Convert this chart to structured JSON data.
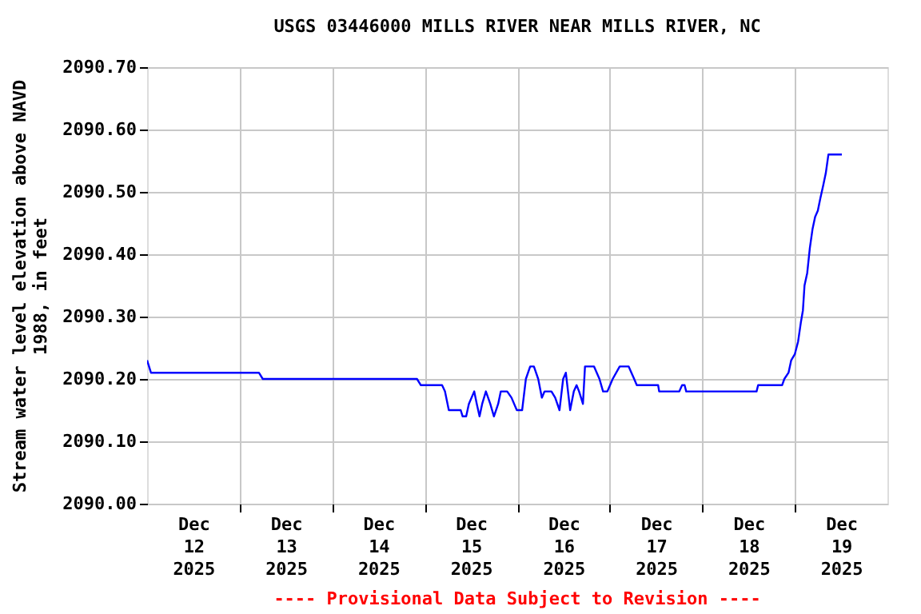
{
  "chart_data": {
    "type": "line",
    "title": "USGS 03446000 MILLS RIVER NEAR MILLS RIVER, NC",
    "ylabel": "Stream water level elevation above NAVD\n1988, in feet",
    "x": [
      "2025-12-12T00:00",
      "2025-12-12T01:00",
      "2025-12-13T05:00",
      "2025-12-13T06:00",
      "2025-12-14T22:00",
      "2025-12-14T23:00",
      "2025-12-15T04:30",
      "2025-12-15T05:15",
      "2025-12-15T06:15",
      "2025-12-15T09:20",
      "2025-12-15T09:50",
      "2025-12-15T10:45",
      "2025-12-15T11:27",
      "2025-12-15T12:50",
      "2025-12-15T13:30",
      "2025-12-15T14:13",
      "2025-12-15T14:54",
      "2025-12-15T15:52",
      "2025-12-15T17:00",
      "2025-12-15T17:57",
      "2025-12-15T19:03",
      "2025-12-15T19:44",
      "2025-12-15T21:23",
      "2025-12-15T22:30",
      "2025-12-15T23:53",
      "2025-12-16T01:16",
      "2025-12-16T02:14",
      "2025-12-16T03:21",
      "2025-12-16T04:19",
      "2025-12-16T05:26",
      "2025-12-16T06:23",
      "2025-12-16T07:05",
      "2025-12-16T08:52",
      "2025-12-16T09:50",
      "2025-12-16T10:57",
      "2025-12-16T11:54",
      "2025-12-16T12:36",
      "2025-12-16T13:43",
      "2025-12-16T14:40",
      "2025-12-16T15:23",
      "2025-12-16T16:02",
      "2025-12-16T17:02",
      "2025-12-16T17:34",
      "2025-12-16T19:55",
      "2025-12-16T21:19",
      "2025-12-16T22:15",
      "2025-12-16T23:22",
      "2025-12-17T00:45",
      "2025-12-17T02:34",
      "2025-12-17T04:54",
      "2025-12-17T06:19",
      "2025-12-17T07:00",
      "2025-12-17T12:32",
      "2025-12-17T12:48",
      "2025-12-17T18:02",
      "2025-12-17T18:45",
      "2025-12-17T19:24",
      "2025-12-17T19:49",
      "2025-12-18T00:15",
      "2025-12-18T14:04",
      "2025-12-18T14:28",
      "2025-12-18T20:41",
      "2025-12-18T21:16",
      "2025-12-18T22:21",
      "2025-12-18T23:03",
      "2025-12-19T00:00",
      "2025-12-19T00:50",
      "2025-12-19T01:32",
      "2025-12-19T02:05",
      "2025-12-19T02:30",
      "2025-12-19T03:12",
      "2025-12-19T03:53",
      "2025-12-19T04:34",
      "2025-12-19T05:15",
      "2025-12-19T05:57",
      "2025-12-19T06:37",
      "2025-12-19T07:20",
      "2025-12-19T08:01",
      "2025-12-19T08:42",
      "2025-12-19T09:25",
      "2025-12-19T12:11"
    ],
    "series": [
      {
        "color": "#0000ff",
        "values": [
          2090.23,
          2090.21,
          2090.21,
          2090.2,
          2090.2,
          2090.19,
          2090.19,
          2090.18,
          2090.15,
          2090.15,
          2090.14,
          2090.14,
          2090.16,
          2090.18,
          2090.16,
          2090.14,
          2090.16,
          2090.18,
          2090.16,
          2090.14,
          2090.16,
          2090.18,
          2090.18,
          2090.17,
          2090.15,
          2090.15,
          2090.2,
          2090.22,
          2090.22,
          2090.2,
          2090.17,
          2090.18,
          2090.18,
          2090.17,
          2090.15,
          2090.2,
          2090.21,
          2090.15,
          2090.18,
          2090.19,
          2090.18,
          2090.16,
          2090.22,
          2090.22,
          2090.2,
          2090.18,
          2090.18,
          2090.2,
          2090.22,
          2090.22,
          2090.2,
          2090.19,
          2090.19,
          2090.18,
          2090.18,
          2090.19,
          2090.19,
          2090.18,
          2090.18,
          2090.18,
          2090.19,
          2090.19,
          2090.2,
          2090.21,
          2090.23,
          2090.24,
          2090.26,
          2090.29,
          2090.31,
          2090.35,
          2090.37,
          2090.41,
          2090.44,
          2090.46,
          2090.47,
          2090.49,
          2090.51,
          2090.53,
          2090.56,
          2090.56,
          2090.56
        ]
      }
    ],
    "xlim": [
      "2025-12-12T00:00",
      "2025-12-20T00:00"
    ],
    "xticks": [
      {
        "value": "2025-12-12T12:00",
        "label": "Dec\n12\n2025"
      },
      {
        "value": "2025-12-13T00:00",
        "label": null
      },
      {
        "value": "2025-12-13T12:00",
        "label": "Dec\n13\n2025"
      },
      {
        "value": "2025-12-14T00:00",
        "label": null
      },
      {
        "value": "2025-12-14T12:00",
        "label": "Dec\n14\n2025"
      },
      {
        "value": "2025-12-15T00:00",
        "label": null
      },
      {
        "value": "2025-12-15T12:00",
        "label": "Dec\n15\n2025"
      },
      {
        "value": "2025-12-16T00:00",
        "label": null
      },
      {
        "value": "2025-12-16T12:00",
        "label": "Dec\n16\n2025"
      },
      {
        "value": "2025-12-17T00:00",
        "label": null
      },
      {
        "value": "2025-12-17T12:00",
        "label": "Dec\n17\n2025"
      },
      {
        "value": "2025-12-18T00:00",
        "label": null
      },
      {
        "value": "2025-12-18T12:00",
        "label": "Dec\n18\n2025"
      },
      {
        "value": "2025-12-19T00:00",
        "label": null
      },
      {
        "value": "2025-12-19T12:00",
        "label": "Dec\n19\n2025"
      }
    ],
    "ylim": [
      2090.0,
      2090.7
    ],
    "yticks": [
      {
        "value": 2090.0,
        "label": "2090.00"
      },
      {
        "value": 2090.1,
        "label": "2090.10"
      },
      {
        "value": 2090.2,
        "label": "2090.20"
      },
      {
        "value": 2090.3,
        "label": "2090.30"
      },
      {
        "value": 2090.4,
        "label": "2090.40"
      },
      {
        "value": 2090.5,
        "label": "2090.50"
      },
      {
        "value": 2090.6,
        "label": "2090.60"
      },
      {
        "value": 2090.7,
        "label": "2090.70"
      }
    ],
    "grid": true,
    "line_style": "solid",
    "marker": "none",
    "annotations": [
      "---- Provisional Data Subject to Revision ----"
    ]
  }
}
